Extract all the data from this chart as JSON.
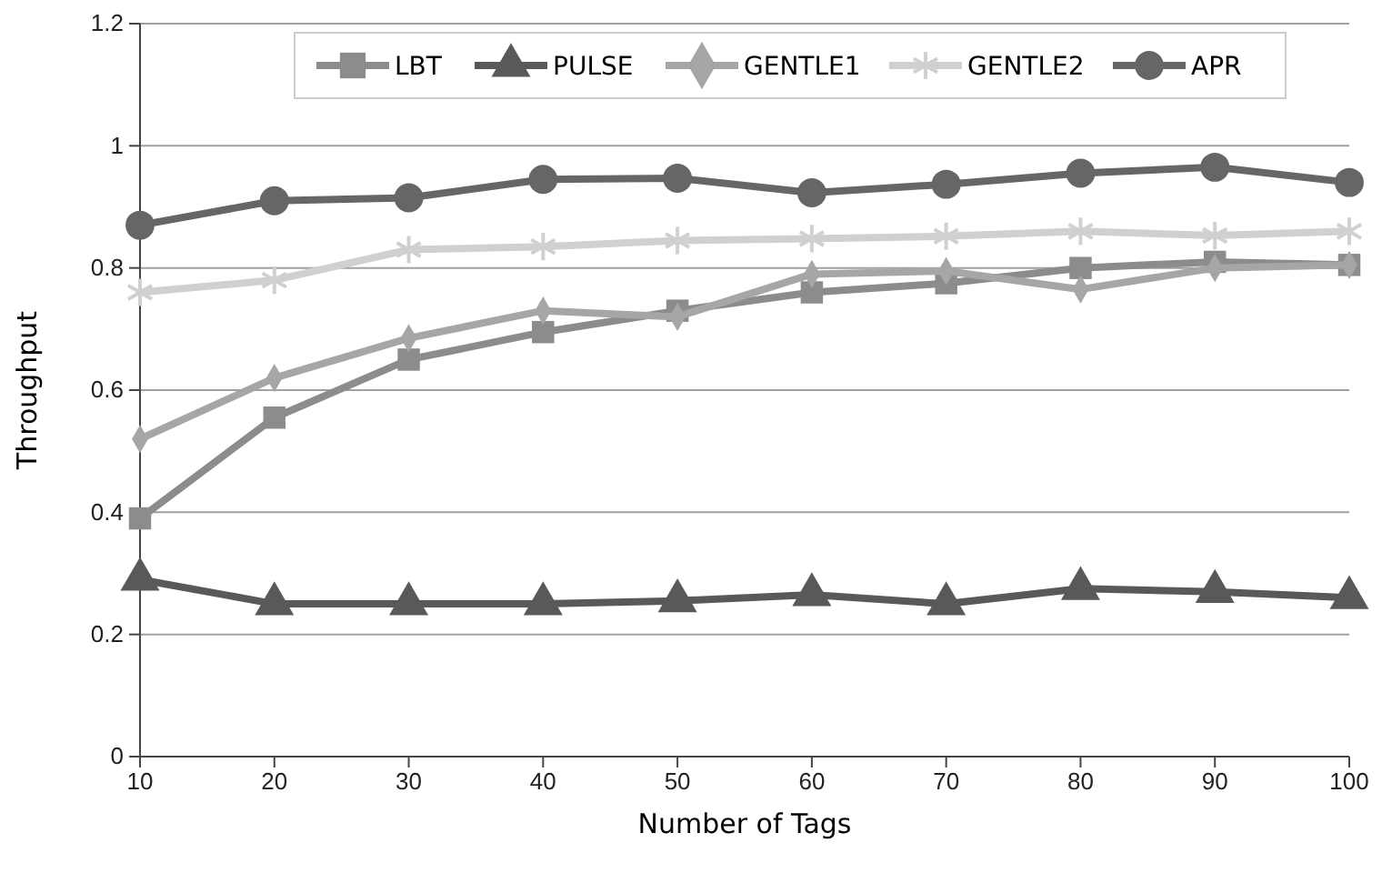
{
  "chart_data": {
    "type": "line",
    "xlabel": "Number of Tags",
    "ylabel": "Throughput",
    "x": [
      10,
      20,
      30,
      40,
      50,
      60,
      70,
      80,
      90,
      100
    ],
    "xlim": [
      10,
      100
    ],
    "xticks": [
      10,
      20,
      30,
      40,
      50,
      60,
      70,
      80,
      90,
      100
    ],
    "ylim": [
      0,
      1.2
    ],
    "yticks": [
      0,
      0.2,
      0.4,
      0.6,
      0.8,
      1,
      1.2
    ],
    "grid": "y",
    "legend": "top",
    "line_style": "solid",
    "series": [
      {
        "name": "LBT",
        "color": "#8c8c8c",
        "marker": "square",
        "values": [
          0.39,
          0.555,
          0.65,
          0.695,
          0.73,
          0.76,
          0.775,
          0.8,
          0.81,
          0.805
        ]
      },
      {
        "name": "PULSE",
        "color": "#595959",
        "marker": "triangle",
        "values": [
          0.29,
          0.25,
          0.25,
          0.25,
          0.255,
          0.265,
          0.25,
          0.275,
          0.27,
          0.26
        ]
      },
      {
        "name": "GENTLE1",
        "color": "#a6a6a6",
        "marker": "diamond",
        "values": [
          0.52,
          0.62,
          0.685,
          0.73,
          0.72,
          0.79,
          0.795,
          0.765,
          0.8,
          0.805
        ]
      },
      {
        "name": "GENTLE2",
        "color": "#d0d0d0",
        "marker": "cross",
        "values": [
          0.76,
          0.78,
          0.83,
          0.835,
          0.845,
          0.848,
          0.852,
          0.86,
          0.853,
          0.86
        ]
      },
      {
        "name": "APR",
        "color": "#666666",
        "marker": "circle",
        "values": [
          0.87,
          0.91,
          0.915,
          0.945,
          0.947,
          0.923,
          0.937,
          0.955,
          0.965,
          0.94
        ]
      }
    ]
  }
}
